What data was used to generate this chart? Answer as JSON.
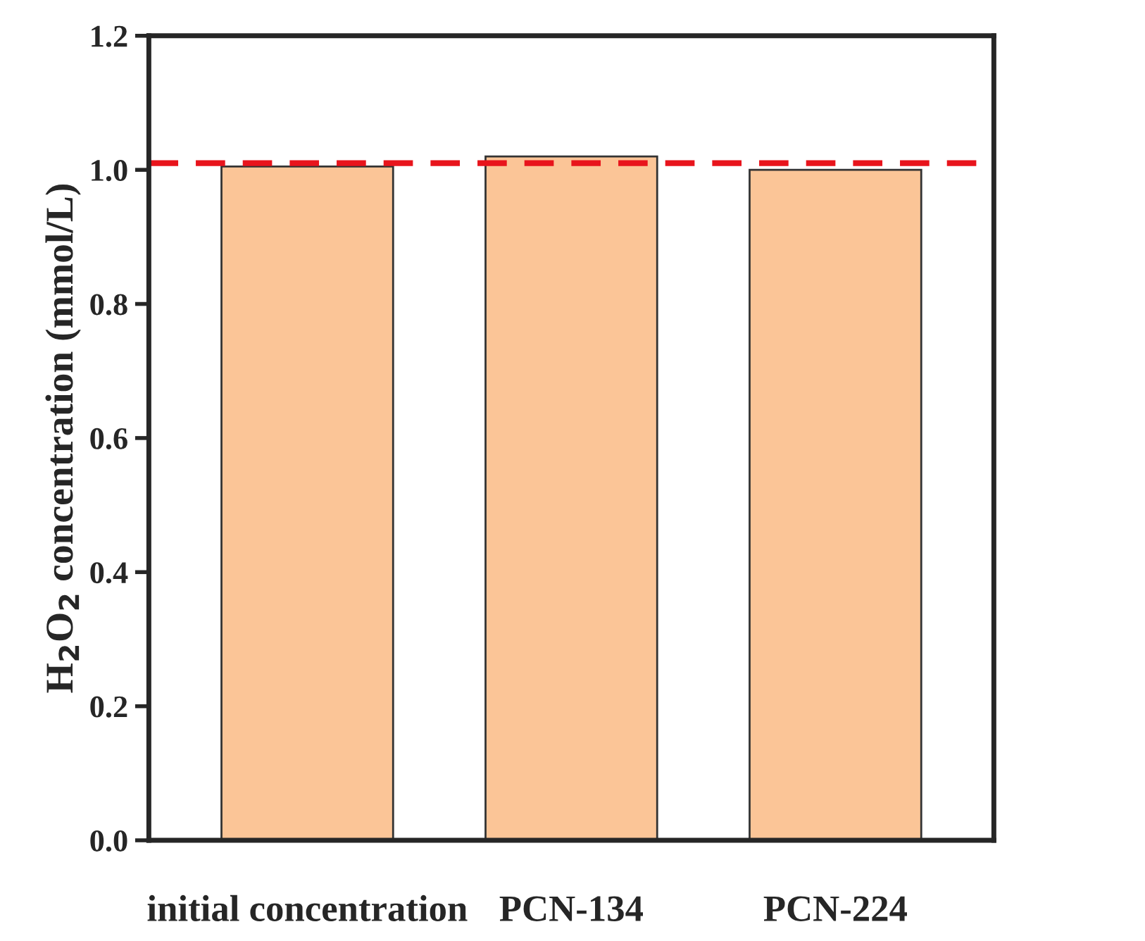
{
  "chart_data": {
    "type": "bar",
    "categories": [
      "initial concentration",
      "PCN-134",
      "PCN-224"
    ],
    "values": [
      1.005,
      1.02,
      1.0
    ],
    "color": "#fbc597",
    "ylabel": "H$_{2}$O$_{2}$ concentration (mmol/L)",
    "ylim": [
      0,
      1.2
    ],
    "yticks": [
      {
        "value": 0,
        "label": "0.0"
      },
      0.2,
      0.4,
      0.6,
      0.8,
      {
        "value": 1,
        "label": "1.0"
      },
      1.2
    ],
    "ref_lines": [
      {
        "axis": "y",
        "value": 1.01,
        "color": "#e8141c",
        "line_style": "dashed"
      }
    ],
    "grid": false,
    "legend": false
  }
}
